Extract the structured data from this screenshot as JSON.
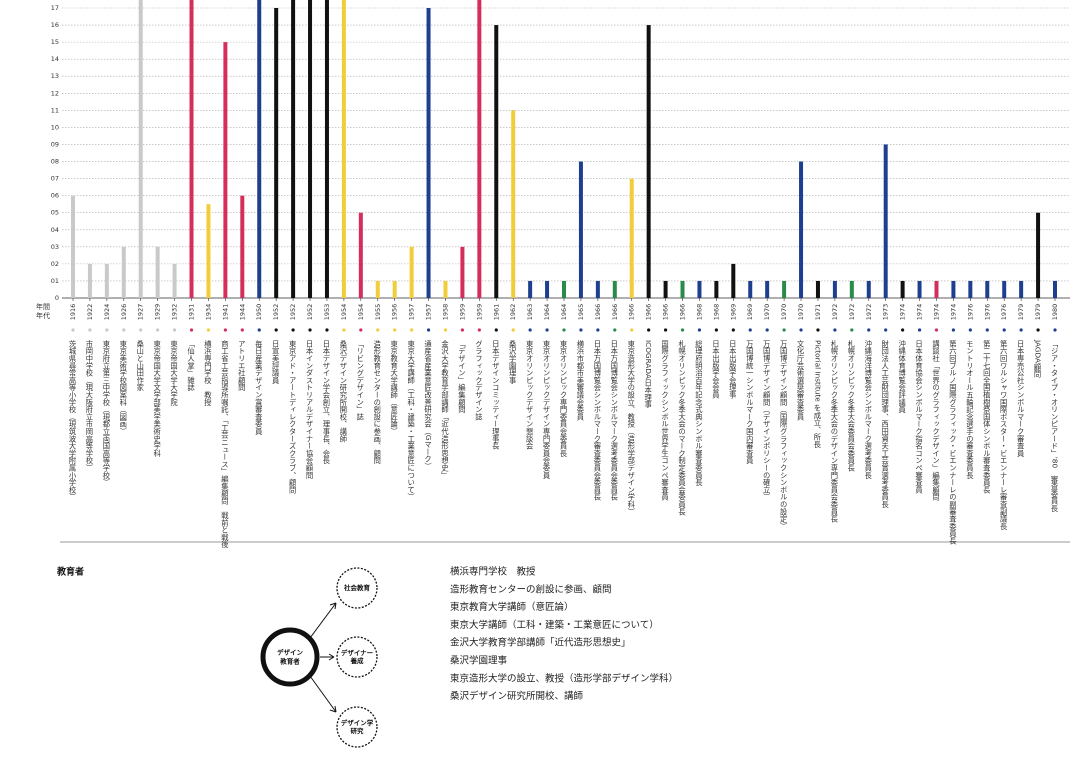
{
  "chart_data": {
    "type": "bar",
    "y_label": "年間",
    "x_label": "年代",
    "categories": [
      "1916",
      "1922",
      "1924",
      "1926",
      "1927",
      "1929",
      "1932",
      "1931",
      "1934",
      "1941",
      "1944",
      "1950",
      "1952",
      "1952",
      "1952",
      "1953",
      "1954",
      "1954",
      "1955",
      "1956",
      "1957",
      "1957",
      "1958",
      "1959",
      "1959",
      "1961",
      "1962",
      "1963",
      "1964",
      "1964",
      "1965",
      "1966",
      "1966",
      "1966",
      "1966",
      "1966",
      "1966",
      "1968",
      "1968",
      "1969",
      "1969",
      "1970",
      "1970",
      "1970",
      "1971",
      "1972",
      "1972",
      "1972",
      "1973",
      "1974",
      "1974",
      "1974",
      "1974",
      "1976",
      "1976",
      "1976",
      "1979",
      "1979",
      "1980"
    ],
    "values": [
      6,
      2,
      2,
      3,
      18,
      3,
      2,
      18,
      5.5,
      15,
      6,
      18,
      17,
      18,
      18,
      18,
      18,
      5,
      1,
      1,
      3,
      17,
      1,
      3,
      18,
      16,
      11,
      1,
      1,
      1,
      8,
      1,
      1,
      7,
      16,
      1,
      1,
      1,
      1,
      2,
      1,
      1,
      1,
      8,
      1,
      1,
      1,
      1,
      9,
      1,
      1,
      1,
      1,
      1,
      1,
      1,
      1,
      5,
      1
    ],
    "colors": [
      "#c9c9c9",
      "#c9c9c9",
      "#c9c9c9",
      "#c9c9c9",
      "#c9c9c9",
      "#c9c9c9",
      "#c9c9c9",
      "#d42f5b",
      "#f2cd3a",
      "#d42f5b",
      "#d42f5b",
      "#1e3f8f",
      "#111111",
      "#111111",
      "#111111",
      "#111111",
      "#f2cd3a",
      "#d42f5b",
      "#f2cd3a",
      "#f2cd3a",
      "#f2cd3a",
      "#1e3f8f",
      "#f2cd3a",
      "#d42f5b",
      "#d42f5b",
      "#111111",
      "#f2cd3a",
      "#1e3f8f",
      "#1e3f8f",
      "#2a8a4a",
      "#1e3f8f",
      "#1e3f8f",
      "#2a8a4a",
      "#f2cd3a",
      "#111111",
      "#111111",
      "#2a8a4a",
      "#1e3f8f",
      "#111111",
      "#111111",
      "#1e3f8f",
      "#1e3f8f",
      "#2a8a4a",
      "#1e3f8f",
      "#111111",
      "#1e3f8f",
      "#2a8a4a",
      "#1e3f8f",
      "#1e3f8f",
      "#111111",
      "#1e3f8f",
      "#d42f5b",
      "#1e3f8f",
      "#1e3f8f",
      "#1e3f8f",
      "#1e3f8f",
      "#1e3f8f",
      "#111111",
      "#1e3f8f"
    ],
    "descriptions": [
      "茨城県尋常高等小学校（現筑波大学附属小学校）",
      "市岡中学校（現大阪府立市岡高等学校）",
      "東京府立第三中学校（現都立両国高等学校）",
      "東京美術学校図案科（図画）",
      "桑山と山田作家",
      "東京帝国大学文学部美学美術史学科",
      "東京帝国大学大学院",
      "「仙人掌」雑誌",
      "横浜専門学校　教授",
      "商工省工芸指導所嘱託、「工芸ニュース」編集顧問　戦前と戦後",
      "アトリエ社顧問",
      "毎日産業デザイン賞審査委員",
      "日宣美評議員",
      "東京アド・アートディレクターズクラブ、顧問",
      "日本インダストリアルデザイナー協会顧問",
      "日本デザイン学会創立、理事長、会長",
      "桑沢デザイン研究所開校、講師",
      "「リビングデザイン」誌",
      "造形教育センターの創設に参画、顧問",
      "東京教育大学講師（意匠論）",
      "東京大学講師（工科・建築・工業意匠について）",
      "通産省産業意匠改善研究会（Gマーク）",
      "金沢大学教育学部講師「近代造形思想史」",
      "「デザイン」編集顧問",
      "グラフィックデザイン誌",
      "日本デザインコミッティー理事長",
      "桑沢学園理事",
      "東京オリンピックデザイン懇談会",
      "東京オリンピックデザイン専門委員会委員",
      "東京オリンピック専門委員会委員長",
      "横浜市都市美審議会委員",
      "日本万国博覧会シンボルマーク審査委員会委員長",
      "日本万国博覧会シンボルマーク選考委員会委員長",
      "東京造形大学の設立、教授（造形学部デザイン学科）",
      "ICOGRADA日本理事",
      "国際グラフィックシンボル世界学生コンペ審査員",
      "札幌オリンピック冬季大会のマーク制定委員会委員長",
      "総理府明治百年記念式典シンボル審査委員長",
      "日本出版学会会員",
      "日本出版学会理事",
      "万国博統一シンボルマーク国内審査員",
      "万国博デザイン顧問（デザインポリシーの確立）",
      "万国博デザイン顧問（国際グラフィックシンボルの設定）",
      "文化庁芸術選奨審査委員",
      "Pictorial Institute を成立、所長",
      "札幌オリンピック冬季大会のデザイン専門委員会委員長",
      "札幌オリンピック冬季大会委員会委員長",
      "沖縄海洋博覧会シンボルマーク選考委員長",
      "財団法人工芸財団理事、西田資夫工芸賞選考委員長",
      "沖縄体育博覧会評議員",
      "日本体育協会シンボルマーク指名コンペ審査員",
      "講談社「世界のグラフィックデザイン」編集顧問",
      "第六回ブルノ国際グラフィック・ビエンナーレの副審査委員長",
      "モントリオール五輪記念選手の審査委員長",
      "第二十七回全国植樹祭国体シンボル審査委員長",
      "第六回ワルシャワ国際ポスター・ビエンナーレ審査副議長",
      "日本専売公社シンボルマーク審査員",
      "JAGDA顧問",
      "「ジア・タイプ・オリンピアード」'80　審査委員長"
    ],
    "ylim": [
      0,
      17.5
    ],
    "yticks": [
      0,
      {
        "value": 1,
        "label": "01"
      },
      {
        "value": 2,
        "label": "02"
      },
      {
        "value": 3,
        "label": "03"
      },
      {
        "value": 4,
        "label": "04"
      },
      {
        "value": 5,
        "label": "05"
      },
      {
        "value": 6,
        "label": "06"
      },
      {
        "value": 7,
        "label": "07"
      },
      {
        "value": 8,
        "label": "08"
      },
      {
        "value": 9,
        "label": "09"
      },
      10,
      11,
      12,
      13,
      14,
      15,
      16,
      17
    ],
    "grid": true
  },
  "section": {
    "title": "教育者",
    "diagram": {
      "center": [
        "デザイン",
        "教育者"
      ],
      "nodes": [
        [
          "社会教育"
        ],
        [
          "デザイナー",
          "養成"
        ],
        [
          "デザイン学",
          "研究"
        ]
      ]
    },
    "list": [
      "横浜専門学校　教授",
      "造形教育センターの創設に参画、顧問",
      "東京教育大学講師（意匠論）",
      "東京大学講師（工科・建築・工業意匠について）",
      "金沢大学教育学部講師「近代造形思想史」",
      "桑沢学園理事",
      "東京造形大学の設立、教授（造形学部デザイン学科）",
      "桑沢デザイン研究所開校、講師"
    ]
  }
}
